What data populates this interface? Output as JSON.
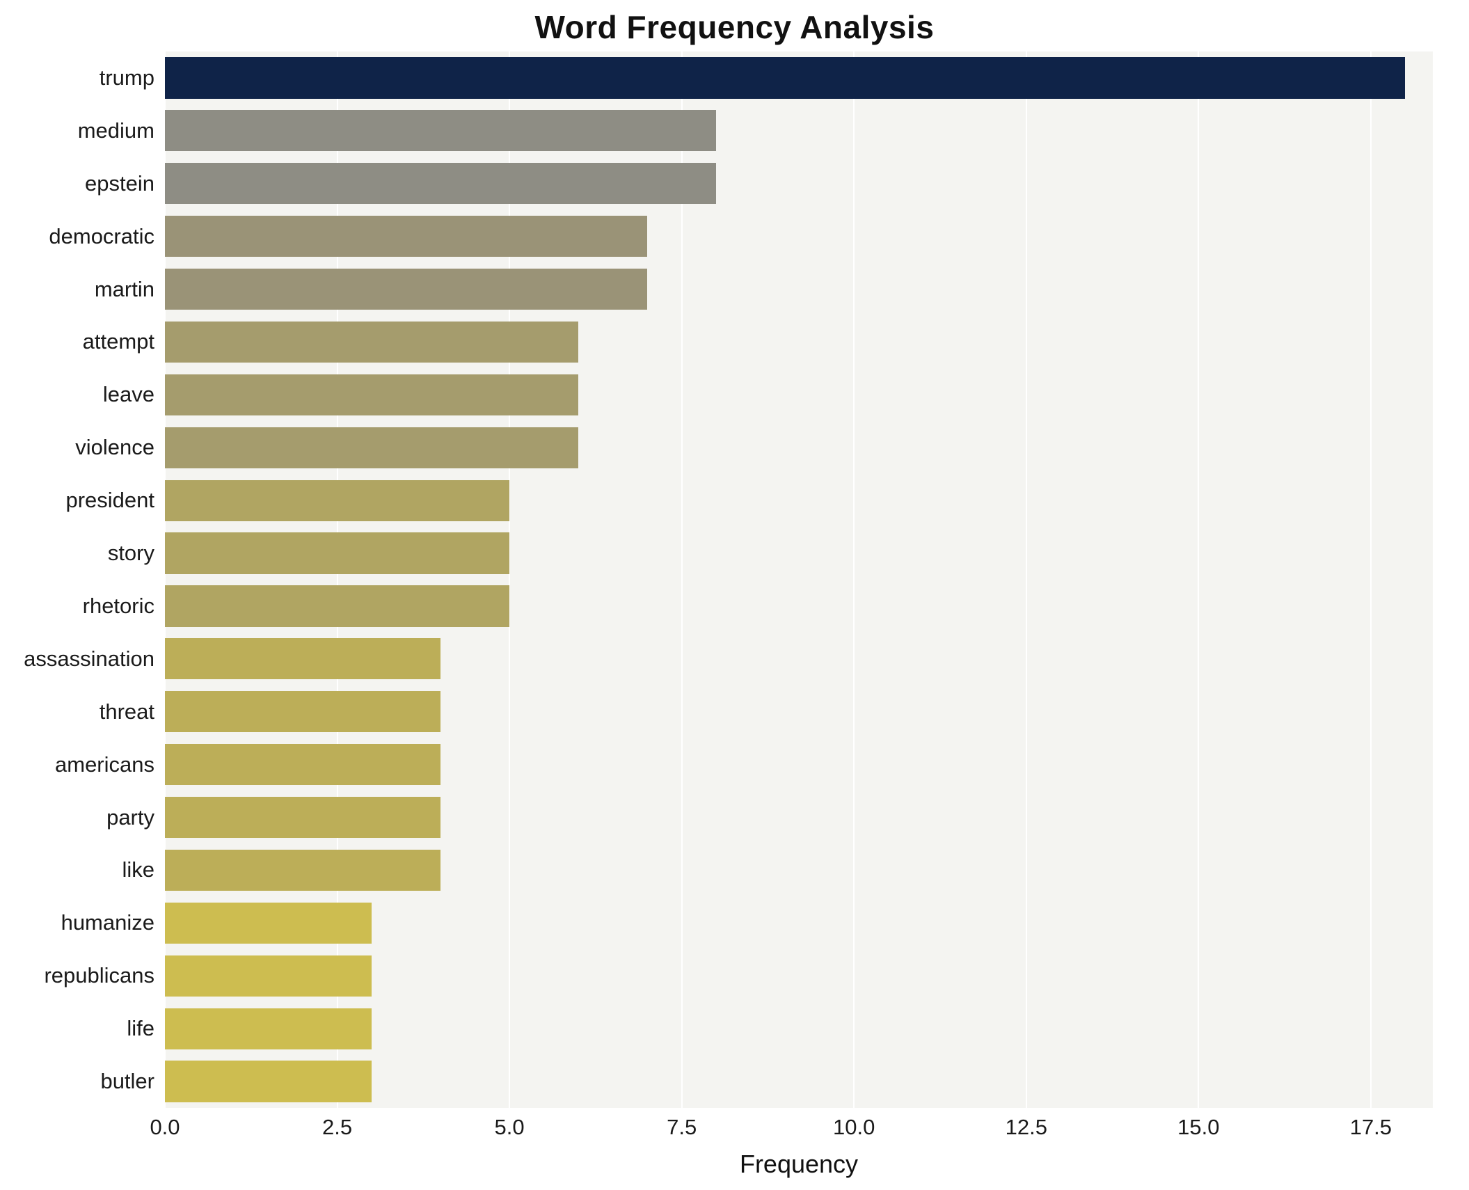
{
  "page": {
    "title": "Word Frequency Analysis"
  },
  "chart_data": {
    "type": "bar",
    "orientation": "horizontal",
    "title": "Word Frequency Analysis",
    "xlabel": "Frequency",
    "ylabel": "",
    "categories": [
      "trump",
      "medium",
      "epstein",
      "democratic",
      "martin",
      "attempt",
      "leave",
      "violence",
      "president",
      "story",
      "rhetoric",
      "assassination",
      "threat",
      "americans",
      "party",
      "like",
      "humanize",
      "republicans",
      "life",
      "butler"
    ],
    "values": [
      18,
      8,
      8,
      7,
      7,
      6,
      6,
      6,
      5,
      5,
      5,
      4,
      4,
      4,
      4,
      4,
      3,
      3,
      3,
      3
    ],
    "bar_colors": [
      "#0f2348",
      "#8e8d84",
      "#8e8d84",
      "#9a9377",
      "#9a9377",
      "#a59c6d",
      "#a59c6d",
      "#a59c6d",
      "#b0a562",
      "#b0a562",
      "#b0a562",
      "#bcae58",
      "#bcae58",
      "#bcae58",
      "#bcae58",
      "#bcae58",
      "#cdbd50",
      "#cdbd50",
      "#cdbd50",
      "#cdbd50"
    ],
    "xlim": [
      0,
      18.4
    ],
    "xticks": [
      "0.0",
      "2.5",
      "5.0",
      "7.5",
      "10.0",
      "12.5",
      "15.0",
      "17.5"
    ],
    "grid": true,
    "legend": "none",
    "plot_background": "#f4f4f1",
    "gridline_color": "#ffffff"
  }
}
